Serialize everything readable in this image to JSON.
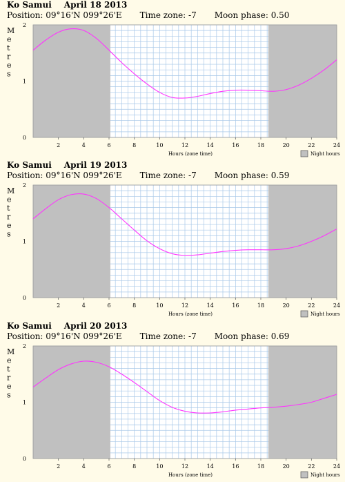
{
  "ylabel": "Metres",
  "xlabel": "Hours (zone time)",
  "night_label": "Night hours",
  "x_ticks": [
    "2",
    "4",
    "6",
    "8",
    "10",
    "12",
    "14",
    "16",
    "18",
    "20",
    "22",
    "24"
  ],
  "y_ticks": [
    "0",
    "1",
    "2"
  ],
  "colors": {
    "night": "#c0c0c0",
    "grid": "#a8c8e8",
    "curve": "#ff33ff",
    "background": "#fffbe8"
  },
  "chart_data": [
    {
      "type": "line",
      "location": "Ko Samui",
      "date": "April 18 2013",
      "position": "Position: 09°16'N 099°26'E",
      "timezone": "Time zone: -7",
      "moon_phase": "Moon phase: 0.50",
      "xlabel": "Hours (zone time)",
      "ylabel": "Metres",
      "xlim": [
        0,
        24
      ],
      "ylim": [
        0,
        2
      ],
      "night_hours": [
        [
          0,
          6.1
        ],
        [
          18.6,
          24
        ]
      ],
      "x": [
        0,
        1,
        2,
        3,
        4,
        5,
        6,
        7,
        8,
        9,
        10,
        11,
        12,
        13,
        14,
        15,
        16,
        17,
        18,
        19,
        20,
        21,
        22,
        23,
        24
      ],
      "y": [
        1.55,
        1.73,
        1.87,
        1.93,
        1.9,
        1.76,
        1.55,
        1.33,
        1.13,
        0.95,
        0.8,
        0.71,
        0.7,
        0.73,
        0.78,
        0.82,
        0.84,
        0.84,
        0.83,
        0.82,
        0.85,
        0.93,
        1.05,
        1.2,
        1.38
      ]
    },
    {
      "type": "line",
      "location": "Ko Samui",
      "date": "April 19 2013",
      "position": "Position: 09°16'N 099°26'E",
      "timezone": "Time zone: -7",
      "moon_phase": "Moon phase: 0.59",
      "xlabel": "Hours (zone time)",
      "ylabel": "Metres",
      "xlim": [
        0,
        24
      ],
      "ylim": [
        0,
        2
      ],
      "night_hours": [
        [
          0,
          6.1
        ],
        [
          18.6,
          24
        ]
      ],
      "x": [
        0,
        1,
        2,
        3,
        4,
        5,
        6,
        7,
        8,
        9,
        10,
        11,
        12,
        13,
        14,
        15,
        16,
        17,
        18,
        19,
        20,
        21,
        22,
        23,
        24
      ],
      "y": [
        1.4,
        1.58,
        1.74,
        1.83,
        1.84,
        1.76,
        1.6,
        1.4,
        1.2,
        1.01,
        0.87,
        0.78,
        0.75,
        0.76,
        0.79,
        0.82,
        0.84,
        0.85,
        0.85,
        0.85,
        0.87,
        0.92,
        1.0,
        1.1,
        1.22
      ]
    },
    {
      "type": "line",
      "location": "Ko Samui",
      "date": "April 20 2013",
      "position": "Position: 09°16'N 099°26'E",
      "timezone": "Time zone: -7",
      "moon_phase": "Moon phase: 0.69",
      "xlabel": "Hours (zone time)",
      "ylabel": "Metres",
      "xlim": [
        0,
        24
      ],
      "ylim": [
        0,
        2
      ],
      "night_hours": [
        [
          0,
          6.1
        ],
        [
          18.6,
          24
        ]
      ],
      "x": [
        0,
        1,
        2,
        3,
        4,
        5,
        6,
        7,
        8,
        9,
        10,
        11,
        12,
        13,
        14,
        15,
        16,
        17,
        18,
        19,
        20,
        21,
        22,
        23,
        24
      ],
      "y": [
        1.27,
        1.43,
        1.58,
        1.68,
        1.73,
        1.71,
        1.63,
        1.5,
        1.35,
        1.19,
        1.03,
        0.91,
        0.84,
        0.81,
        0.81,
        0.83,
        0.86,
        0.88,
        0.9,
        0.91,
        0.93,
        0.96,
        1.0,
        1.07,
        1.14
      ]
    }
  ]
}
